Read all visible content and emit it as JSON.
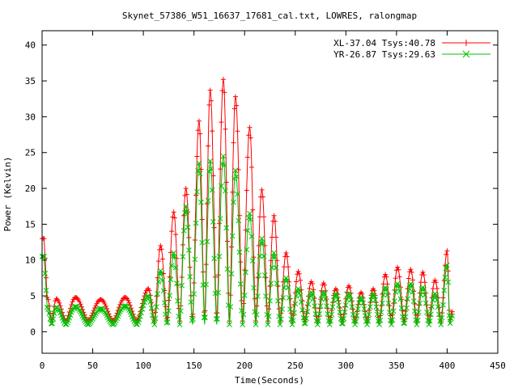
{
  "chart_data": {
    "type": "line",
    "title": "Skynet_57386_W51_16637_17681_cal.txt, LOWRES, ralongmap",
    "xlabel": "Time(Seconds)",
    "ylabel": "Power (Kelvin)",
    "xlim": [
      0,
      450
    ],
    "ylim": [
      -3,
      42
    ],
    "xticks": [
      0,
      50,
      100,
      150,
      200,
      250,
      300,
      350,
      400,
      450
    ],
    "yticks": [
      0,
      5,
      10,
      15,
      20,
      25,
      30,
      35,
      40
    ],
    "grid": false,
    "legend_position": "top-right",
    "series": [
      {
        "name": "XL-37.04 Tsys:40.78",
        "color": "#ff0000",
        "marker": "plus",
        "peaks": [
          {
            "t": 0,
            "v": 13.0
          },
          {
            "t": 2,
            "v": 13.0
          },
          {
            "t": 5,
            "v": 4.8
          },
          {
            "t": 14,
            "v": 4.6
          },
          {
            "t": 33,
            "v": 4.8
          },
          {
            "t": 58,
            "v": 4.5
          },
          {
            "t": 82,
            "v": 4.8
          },
          {
            "t": 105,
            "v": 6.0
          },
          {
            "t": 117,
            "v": 12.0
          },
          {
            "t": 130,
            "v": 16.7
          },
          {
            "t": 142,
            "v": 20.0
          },
          {
            "t": 155,
            "v": 29.4
          },
          {
            "t": 166,
            "v": 33.7
          },
          {
            "t": 179,
            "v": 35.2
          },
          {
            "t": 191,
            "v": 32.8
          },
          {
            "t": 205,
            "v": 28.5
          },
          {
            "t": 217,
            "v": 19.8
          },
          {
            "t": 229,
            "v": 16.2
          },
          {
            "t": 241,
            "v": 11.0
          },
          {
            "t": 253,
            "v": 8.4
          },
          {
            "t": 266,
            "v": 7.0
          },
          {
            "t": 278,
            "v": 6.8
          },
          {
            "t": 290,
            "v": 6.0
          },
          {
            "t": 303,
            "v": 6.4
          },
          {
            "t": 315,
            "v": 5.5
          },
          {
            "t": 327,
            "v": 6.0
          },
          {
            "t": 339,
            "v": 8.0
          },
          {
            "t": 351,
            "v": 9.0
          },
          {
            "t": 364,
            "v": 8.7
          },
          {
            "t": 376,
            "v": 8.3
          },
          {
            "t": 388,
            "v": 7.2
          },
          {
            "t": 400,
            "v": 11.3
          },
          {
            "t": 405,
            "v": 2.8
          }
        ],
        "baseline": 1.5
      },
      {
        "name": "YR-26.87 Tsys:29.63",
        "color": "#00c000",
        "marker": "cross",
        "peaks": [
          {
            "t": 0,
            "v": 10.5
          },
          {
            "t": 2,
            "v": 10.5
          },
          {
            "t": 5,
            "v": 3.4
          },
          {
            "t": 14,
            "v": 3.4
          },
          {
            "t": 33,
            "v": 3.5
          },
          {
            "t": 58,
            "v": 3.2
          },
          {
            "t": 82,
            "v": 3.6
          },
          {
            "t": 105,
            "v": 5.0
          },
          {
            "t": 117,
            "v": 8.5
          },
          {
            "t": 130,
            "v": 11.0
          },
          {
            "t": 142,
            "v": 17.5
          },
          {
            "t": 155,
            "v": 23.5
          },
          {
            "t": 166,
            "v": 23.8
          },
          {
            "t": 179,
            "v": 24.5
          },
          {
            "t": 191,
            "v": 22.5
          },
          {
            "t": 205,
            "v": 16.5
          },
          {
            "t": 217,
            "v": 13.0
          },
          {
            "t": 229,
            "v": 11.0
          },
          {
            "t": 241,
            "v": 7.5
          },
          {
            "t": 253,
            "v": 6.0
          },
          {
            "t": 266,
            "v": 5.5
          },
          {
            "t": 278,
            "v": 5.5
          },
          {
            "t": 290,
            "v": 5.3
          },
          {
            "t": 303,
            "v": 5.3
          },
          {
            "t": 315,
            "v": 4.8
          },
          {
            "t": 327,
            "v": 5.3
          },
          {
            "t": 339,
            "v": 6.2
          },
          {
            "t": 351,
            "v": 6.7
          },
          {
            "t": 364,
            "v": 6.7
          },
          {
            "t": 376,
            "v": 6.2
          },
          {
            "t": 388,
            "v": 5.3
          },
          {
            "t": 400,
            "v": 9.3
          },
          {
            "t": 405,
            "v": 2.2
          }
        ],
        "baseline": 1.0
      }
    ]
  }
}
